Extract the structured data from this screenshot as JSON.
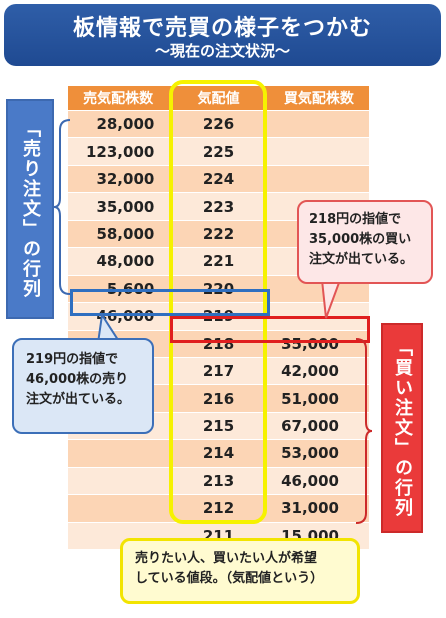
{
  "title": {
    "main": "板情報で売買の様子をつかむ",
    "sub": "〜現在の注文状況〜"
  },
  "table": {
    "headers": [
      "売気配株数",
      "気配値",
      "買気配株数"
    ],
    "rows": [
      {
        "sell": "28,000",
        "price": "226",
        "buy": ""
      },
      {
        "sell": "123,000",
        "price": "225",
        "buy": ""
      },
      {
        "sell": "32,000",
        "price": "224",
        "buy": ""
      },
      {
        "sell": "35,000",
        "price": "223",
        "buy": ""
      },
      {
        "sell": "58,000",
        "price": "222",
        "buy": ""
      },
      {
        "sell": "48,000",
        "price": "221",
        "buy": ""
      },
      {
        "sell": "5,600",
        "price": "220",
        "buy": ""
      },
      {
        "sell": "46,000",
        "price": "219",
        "buy": ""
      },
      {
        "sell": "",
        "price": "218",
        "buy": "35,000"
      },
      {
        "sell": "",
        "price": "217",
        "buy": "42,000"
      },
      {
        "sell": "",
        "price": "216",
        "buy": "51,000"
      },
      {
        "sell": "",
        "price": "215",
        "buy": "67,000"
      },
      {
        "sell": "",
        "price": "214",
        "buy": "53,000"
      },
      {
        "sell": "",
        "price": "213",
        "buy": "46,000"
      },
      {
        "sell": "",
        "price": "212",
        "buy": "31,000"
      },
      {
        "sell": "",
        "price": "211",
        "buy": "15,000"
      }
    ]
  },
  "labels": {
    "sell_side": "「売り注文」の行列",
    "buy_side": "「買い注文」の行列"
  },
  "callouts": {
    "buy": [
      "218円の指値で",
      "35,000株の買い",
      "注文が出ている。"
    ],
    "sell": [
      "219円の指値で",
      "46,000株の売り",
      "注文が出ている。"
    ],
    "note": [
      "売りたい人、買いたい人が希望",
      "している値段。（気配値という）"
    ]
  },
  "colors": {
    "banner": "#2f5ea8",
    "header": "#ef8f3a",
    "row_dark": "#fcd5b5",
    "row_light": "#fde9d9",
    "sell_accent": "#4a7ac8",
    "buy_accent": "#ea3a3a",
    "highlight_yellow": "#f6f200"
  }
}
